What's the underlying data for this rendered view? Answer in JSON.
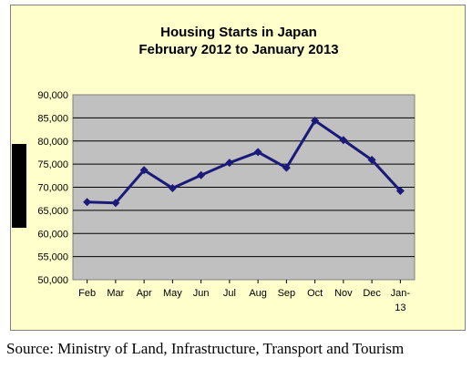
{
  "chart_data": {
    "type": "line",
    "title_line1": "Housing Starts in Japan",
    "title_line2": "February 2012  to January 2013",
    "categories": [
      "Feb",
      "Mar",
      "Apr",
      "May",
      "Jun",
      "Jul",
      "Aug",
      "Sep",
      "Oct",
      "Nov",
      "Dec",
      "Jan-13"
    ],
    "values": [
      66800,
      66600,
      73700,
      69800,
      72600,
      75300,
      77600,
      74200,
      84400,
      80200,
      75900,
      69200
    ],
    "ylim": [
      50000,
      90000
    ],
    "yticks": [
      "50,000",
      "55,000",
      "60,000",
      "65,000",
      "70,000",
      "75,000",
      "80,000",
      "85,000",
      "90,000"
    ],
    "grid": true,
    "colors": {
      "line": "#1a1a7a",
      "plot_bg": "#c0c0c0",
      "chart_bg": "#ffffcc"
    }
  },
  "source": "Source: Ministry of Land, Infrastructure, Transport and Tourism"
}
